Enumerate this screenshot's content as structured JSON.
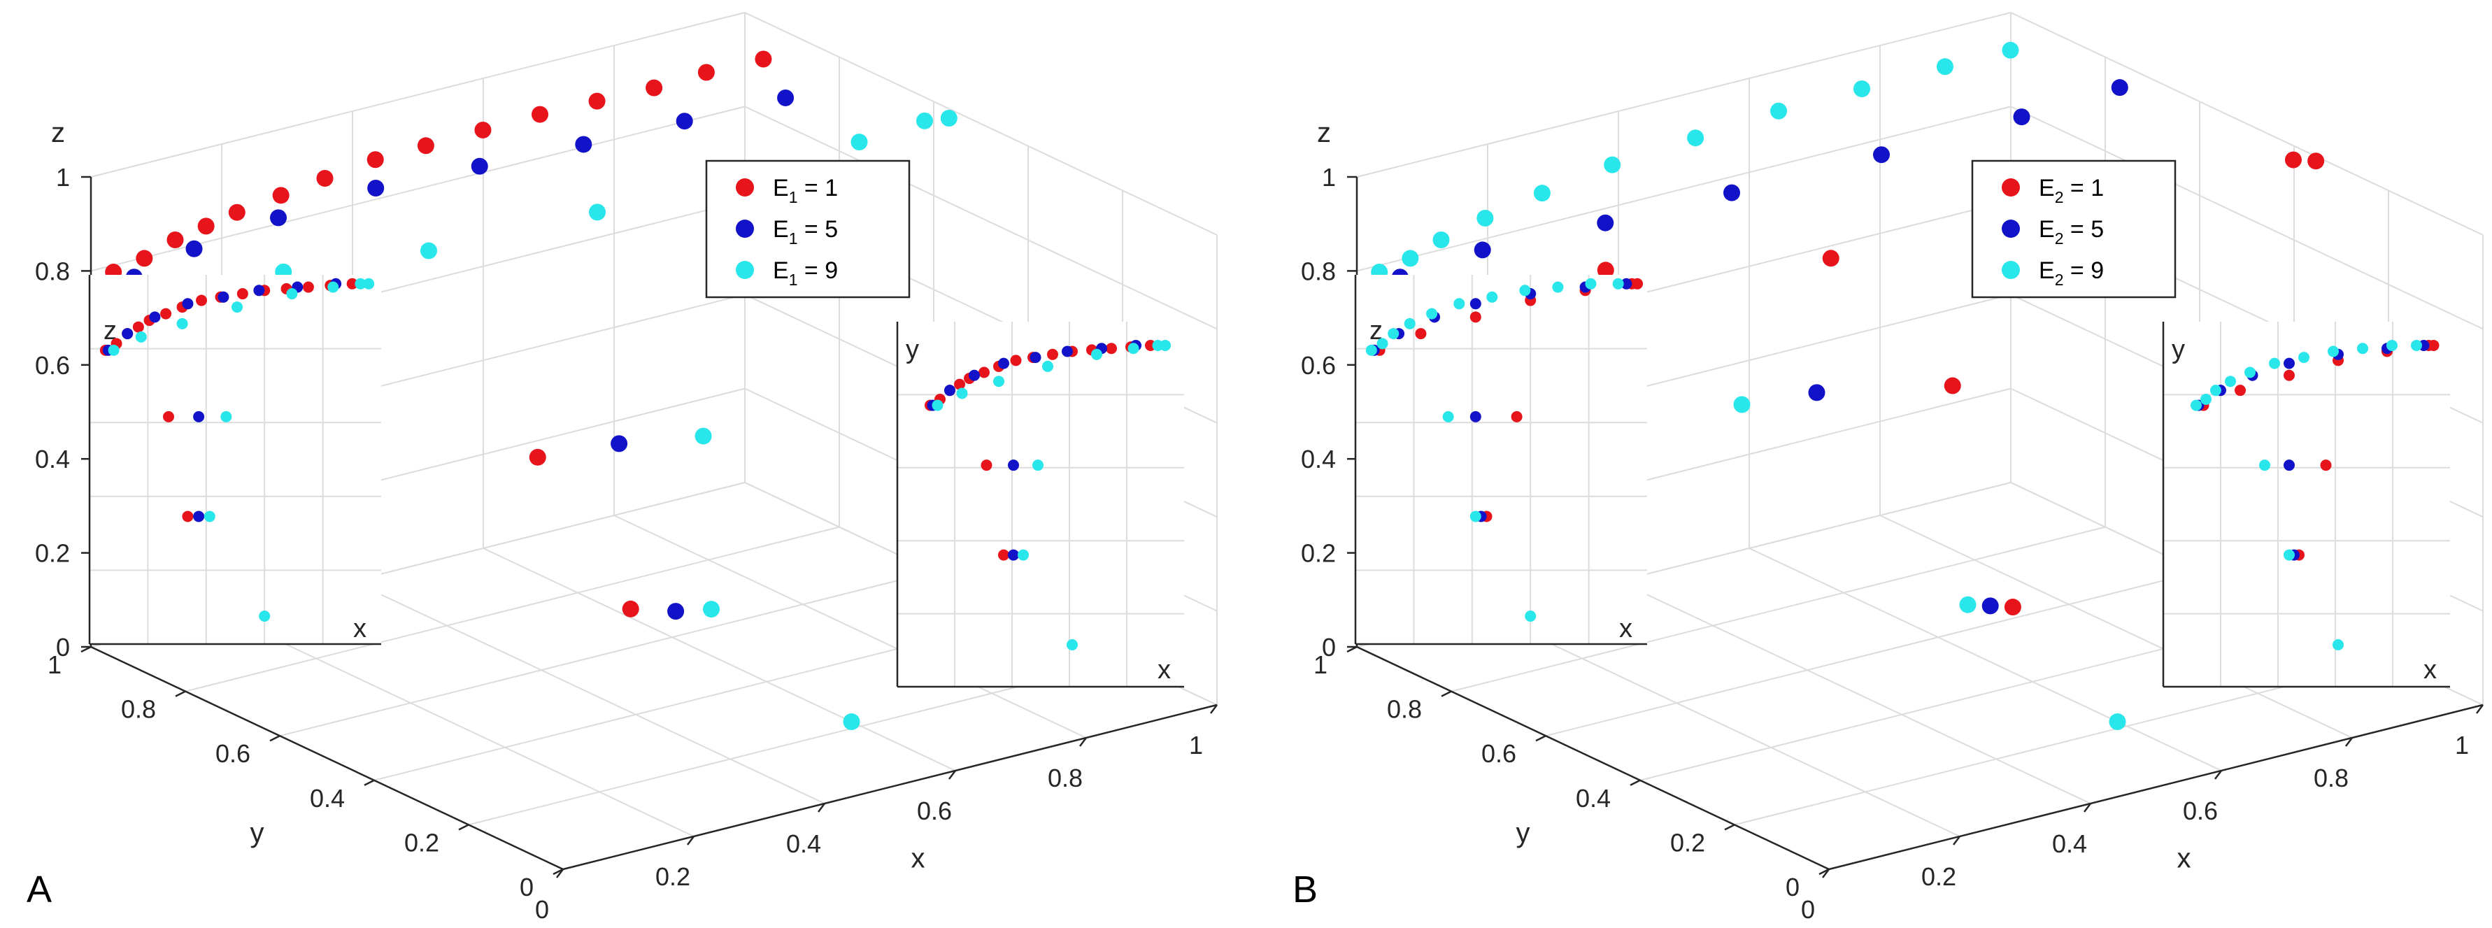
{
  "figure": {
    "panels": [
      "A",
      "B"
    ]
  },
  "chart_data": [
    {
      "type": "scatter",
      "panel_label": "A",
      "title": "",
      "xlabel": "x",
      "ylabel": "y",
      "zlabel": "z",
      "xlim": [
        0,
        1
      ],
      "ylim": [
        0,
        1
      ],
      "zlim": [
        0,
        1
      ],
      "x_ticks": [
        "0",
        "0.2",
        "0.4",
        "0.6",
        "0.8",
        "1"
      ],
      "y_ticks": [
        "0",
        "0.2",
        "0.4",
        "0.6",
        "0.8",
        "1"
      ],
      "z_ticks": [
        "0",
        "0.2",
        "0.4",
        "0.6",
        "0.8",
        "1"
      ],
      "grid": true,
      "legend_position": "upper-right",
      "legend": [
        {
          "base": "E",
          "sub": "1",
          "suffix": " = 1",
          "color": "#e8141c"
        },
        {
          "base": "E",
          "sub": "1",
          "suffix": " = 5",
          "color": "#1212c8"
        },
        {
          "base": "E",
          "sub": "1",
          "suffix": " = 9",
          "color": "#28e6ea"
        }
      ],
      "series": [
        {
          "name": "E1 = 1",
          "color": "#e8141c",
          "points": [
            [
              0.02,
              0.98,
              0.8
            ],
            [
              0.06,
              0.97,
              0.82
            ],
            [
              0.1,
              0.96,
              0.85
            ],
            [
              0.14,
              0.95,
              0.87
            ],
            [
              0.18,
              0.94,
              0.89
            ],
            [
              0.24,
              0.93,
              0.91
            ],
            [
              0.3,
              0.92,
              0.93
            ],
            [
              0.37,
              0.91,
              0.95
            ],
            [
              0.44,
              0.9,
              0.96
            ],
            [
              0.52,
              0.89,
              0.97
            ],
            [
              0.6,
              0.88,
              0.98
            ],
            [
              0.68,
              0.87,
              0.985
            ],
            [
              0.76,
              0.86,
              0.99
            ],
            [
              0.84,
              0.86,
              0.995
            ],
            [
              0.92,
              0.85,
              1.0
            ],
            [
              0.25,
              0.4,
              0.6
            ],
            [
              0.32,
              0.3,
              0.3
            ]
          ]
        },
        {
          "name": "E1 = 5",
          "color": "#1212c8",
          "points": [
            [
              0.03,
              0.95,
              0.8
            ],
            [
              0.1,
              0.92,
              0.85
            ],
            [
              0.2,
              0.88,
              0.9
            ],
            [
              0.32,
              0.84,
              0.94
            ],
            [
              0.45,
              0.8,
              0.96
            ],
            [
              0.58,
              0.76,
              0.98
            ],
            [
              0.72,
              0.74,
              0.99
            ],
            [
              0.86,
              0.72,
              1.0
            ],
            [
              0.36,
              0.38,
              0.6
            ],
            [
              0.36,
              0.26,
              0.3
            ]
          ]
        },
        {
          "name": "E1 = 9",
          "color": "#28e6ea",
          "points": [
            [
              0.05,
              0.9,
              0.8
            ],
            [
              0.15,
              0.8,
              0.84
            ],
            [
              0.3,
              0.7,
              0.88
            ],
            [
              0.5,
              0.62,
              0.93
            ],
            [
              0.7,
              0.58,
              0.97
            ],
            [
              0.85,
              0.55,
              0.99
            ],
            [
              0.95,
              0.55,
              1.0
            ],
            [
              0.98,
              0.54,
              1.0
            ],
            [
              0.46,
              0.34,
              0.6
            ],
            [
              0.4,
              0.24,
              0.3
            ],
            [
              0.6,
              0.22,
              0.0
            ]
          ]
        }
      ],
      "insets": [
        {
          "plane": "x-z",
          "xlabel": "x",
          "ylabel": "z"
        },
        {
          "plane": "x-y",
          "xlabel": "x",
          "ylabel": "y"
        }
      ]
    },
    {
      "type": "scatter",
      "panel_label": "B",
      "title": "",
      "xlabel": "x",
      "ylabel": "y",
      "zlabel": "z",
      "xlim": [
        0,
        1
      ],
      "ylim": [
        0,
        1
      ],
      "zlim": [
        0,
        1
      ],
      "x_ticks": [
        "0",
        "0.2",
        "0.4",
        "0.6",
        "0.8",
        "1"
      ],
      "y_ticks": [
        "0",
        "0.2",
        "0.4",
        "0.6",
        "0.8",
        "1"
      ],
      "z_ticks": [
        "0",
        "0.2",
        "0.4",
        "0.6",
        "0.8",
        "1"
      ],
      "grid": true,
      "legend_position": "upper-right",
      "legend": [
        {
          "base": "E",
          "sub": "2",
          "suffix": " = 1",
          "color": "#e8141c"
        },
        {
          "base": "E",
          "sub": "2",
          "suffix": " = 5",
          "color": "#1212c8"
        },
        {
          "base": "E",
          "sub": "2",
          "suffix": " = 9",
          "color": "#28e6ea"
        }
      ],
      "series": [
        {
          "name": "E2 = 1",
          "color": "#e8141c",
          "points": [
            [
              0.05,
              0.9,
              0.8
            ],
            [
              0.2,
              0.75,
              0.85
            ],
            [
              0.4,
              0.55,
              0.9
            ],
            [
              0.6,
              0.45,
              0.95
            ],
            [
              0.8,
              0.4,
              0.98
            ],
            [
              0.97,
              0.36,
              1.0
            ],
            [
              0.99,
              0.34,
              1.0
            ],
            [
              0.55,
              0.5,
              0.6
            ],
            [
              0.44,
              0.22,
              0.3
            ]
          ]
        },
        {
          "name": "E2 = 5",
          "color": "#1212c8",
          "points": [
            [
              0.03,
              0.95,
              0.8
            ],
            [
              0.12,
              0.9,
              0.85
            ],
            [
              0.25,
              0.82,
              0.9
            ],
            [
              0.4,
              0.76,
              0.94
            ],
            [
              0.6,
              0.72,
              0.97
            ],
            [
              0.8,
              0.7,
              0.99
            ],
            [
              0.95,
              0.7,
              1.0
            ],
            [
              0.4,
              0.58,
              0.6
            ],
            [
              0.42,
              0.24,
              0.3
            ]
          ]
        },
        {
          "name": "E2 = 9",
          "color": "#28e6ea",
          "points": [
            [
              0.02,
              0.98,
              0.8
            ],
            [
              0.06,
              0.97,
              0.82
            ],
            [
              0.1,
              0.96,
              0.85
            ],
            [
              0.16,
              0.95,
              0.88
            ],
            [
              0.24,
              0.94,
              0.91
            ],
            [
              0.34,
              0.93,
              0.94
            ],
            [
              0.46,
              0.92,
              0.96
            ],
            [
              0.58,
              0.91,
              0.98
            ],
            [
              0.7,
              0.9,
              0.99
            ],
            [
              0.82,
              0.89,
              1.0
            ],
            [
              0.92,
              0.89,
              1.0
            ],
            [
              0.3,
              0.6,
              0.6
            ],
            [
              0.4,
              0.26,
              0.3
            ],
            [
              0.6,
              0.22,
              0.0
            ]
          ]
        }
      ],
      "insets": [
        {
          "plane": "x-z",
          "xlabel": "x",
          "ylabel": "z"
        },
        {
          "plane": "x-y",
          "xlabel": "x",
          "ylabel": "y"
        }
      ]
    }
  ]
}
